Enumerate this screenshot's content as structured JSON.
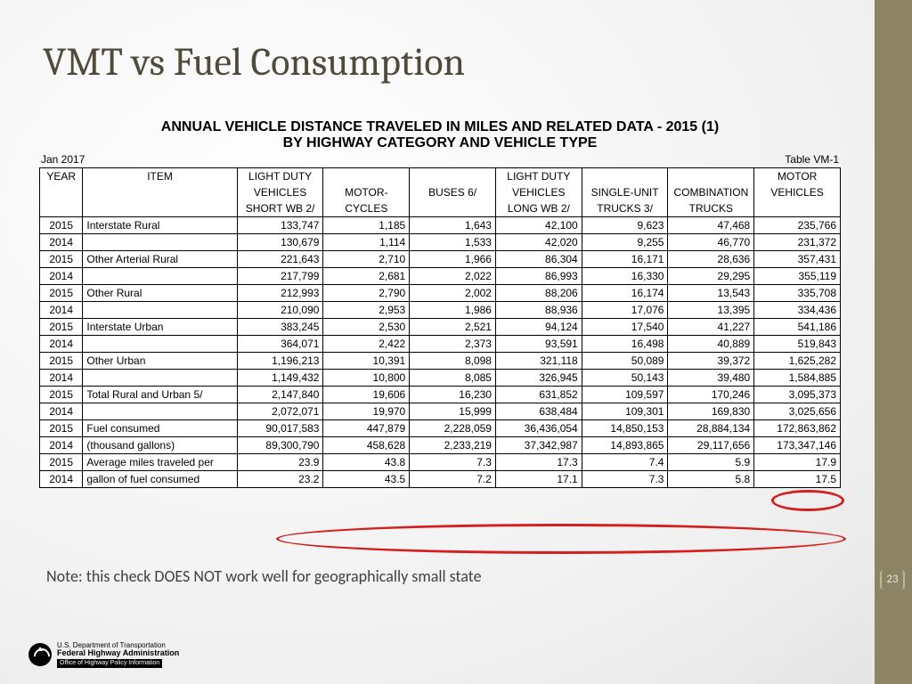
{
  "slide": {
    "title": "VMT vs Fuel Consumption",
    "note": "Note: this check DOES NOT work well for geographically small state",
    "page_number": "23"
  },
  "table": {
    "title_line1": "ANNUAL VEHICLE DISTANCE TRAVELED IN MILES AND RELATED DATA - 2015 (1)",
    "title_line2": "BY HIGHWAY CATEGORY AND VEHICLE TYPE",
    "meta_left": "Jan 2017",
    "meta_right": "Table VM-1",
    "columns": {
      "year": "YEAR",
      "item": "ITEM",
      "c1": [
        "LIGHT DUTY",
        "VEHICLES",
        "SHORT WB 2/"
      ],
      "c2": [
        "",
        "MOTOR-",
        "CYCLES"
      ],
      "c3": [
        "",
        "BUSES 6/",
        ""
      ],
      "c4": [
        "LIGHT DUTY",
        "VEHICLES",
        "LONG WB 2/"
      ],
      "c5": [
        "",
        "SINGLE-UNIT",
        "TRUCKS  3/"
      ],
      "c6": [
        "",
        "COMBINATION",
        "TRUCKS"
      ],
      "c7": [
        "MOTOR",
        "VEHICLES",
        ""
      ]
    },
    "rows": [
      {
        "year": "2015",
        "item": "Interstate Rural",
        "v": [
          "133,747",
          "1,185",
          "1,643",
          "42,100",
          "9,623",
          "47,468",
          "235,766"
        ]
      },
      {
        "year": "2014",
        "item": "",
        "v": [
          "130,679",
          "1,114",
          "1,533",
          "42,020",
          "9,255",
          "46,770",
          "231,372"
        ]
      },
      {
        "year": "2015",
        "item": "Other Arterial Rural",
        "v": [
          "221,643",
          "2,710",
          "1,966",
          "86,304",
          "16,171",
          "28,636",
          "357,431"
        ]
      },
      {
        "year": "2014",
        "item": "",
        "v": [
          "217,799",
          "2,681",
          "2,022",
          "86,993",
          "16,330",
          "29,295",
          "355,119"
        ]
      },
      {
        "year": "2015",
        "item": "Other Rural",
        "v": [
          "212,993",
          "2,790",
          "2,002",
          "88,206",
          "16,174",
          "13,543",
          "335,708"
        ]
      },
      {
        "year": "2014",
        "item": "",
        "v": [
          "210,090",
          "2,953",
          "1,986",
          "88,936",
          "17,076",
          "13,395",
          "334,436"
        ]
      },
      {
        "year": "2015",
        "item": "Interstate Urban",
        "v": [
          "383,245",
          "2,530",
          "2,521",
          "94,124",
          "17,540",
          "41,227",
          "541,186"
        ]
      },
      {
        "year": "2014",
        "item": "",
        "v": [
          "364,071",
          "2,422",
          "2,373",
          "93,591",
          "16,498",
          "40,889",
          "519,843"
        ]
      },
      {
        "year": "2015",
        "item": "Other Urban",
        "v": [
          "1,196,213",
          "10,391",
          "8,098",
          "321,118",
          "50,089",
          "39,372",
          "1,625,282"
        ]
      },
      {
        "year": "2014",
        "item": "",
        "v": [
          "1,149,432",
          "10,800",
          "8,085",
          "326,945",
          "50,143",
          "39,480",
          "1,584,885"
        ]
      },
      {
        "year": "2015",
        "item": "Total Rural and Urban  5/",
        "v": [
          "2,147,840",
          "19,606",
          "16,230",
          "631,852",
          "109,597",
          "170,246",
          "3,095,373"
        ]
      },
      {
        "year": "2014",
        "item": "",
        "v": [
          "2,072,071",
          "19,970",
          "15,999",
          "638,484",
          "109,301",
          "169,830",
          "3,025,656"
        ]
      },
      {
        "year": "2015",
        "item": "Fuel consumed",
        "v": [
          "90,017,583",
          "447,879",
          "2,228,059",
          "36,436,054",
          "14,850,153",
          "28,884,134",
          "172,863,862"
        ]
      },
      {
        "year": "2014",
        "item": " (thousand gallons)",
        "v": [
          "89,300,790",
          "458,628",
          "2,233,219",
          "37,342,987",
          "14,893,865",
          "29,117,656",
          "173,347,146"
        ]
      },
      {
        "year": "2015",
        "item": "Average miles traveled per",
        "v": [
          "23.9",
          "43.8",
          "7.3",
          "17.3",
          "7.4",
          "5.9",
          "17.9"
        ]
      },
      {
        "year": "2014",
        "item": " gallon of fuel consumed",
        "v": [
          "23.2",
          "43.5",
          "7.2",
          "17.1",
          "7.3",
          "5.8",
          "17.5"
        ]
      }
    ]
  },
  "footer": {
    "line1": "U.S. Department of Transportation",
    "line2": "Federal Highway Administration",
    "line3": "Office of Highway Policy Information"
  },
  "style": {
    "sidebar_color": "#8c8464",
    "title_color": "#4f4a3a",
    "annotation_color": "#d3201f",
    "table_border": "#000000",
    "background_center": "#ffffff",
    "background_edge": "#e4e4e4",
    "title_fontsize": 44,
    "table_fontsize": 12,
    "note_fontsize": 18
  }
}
